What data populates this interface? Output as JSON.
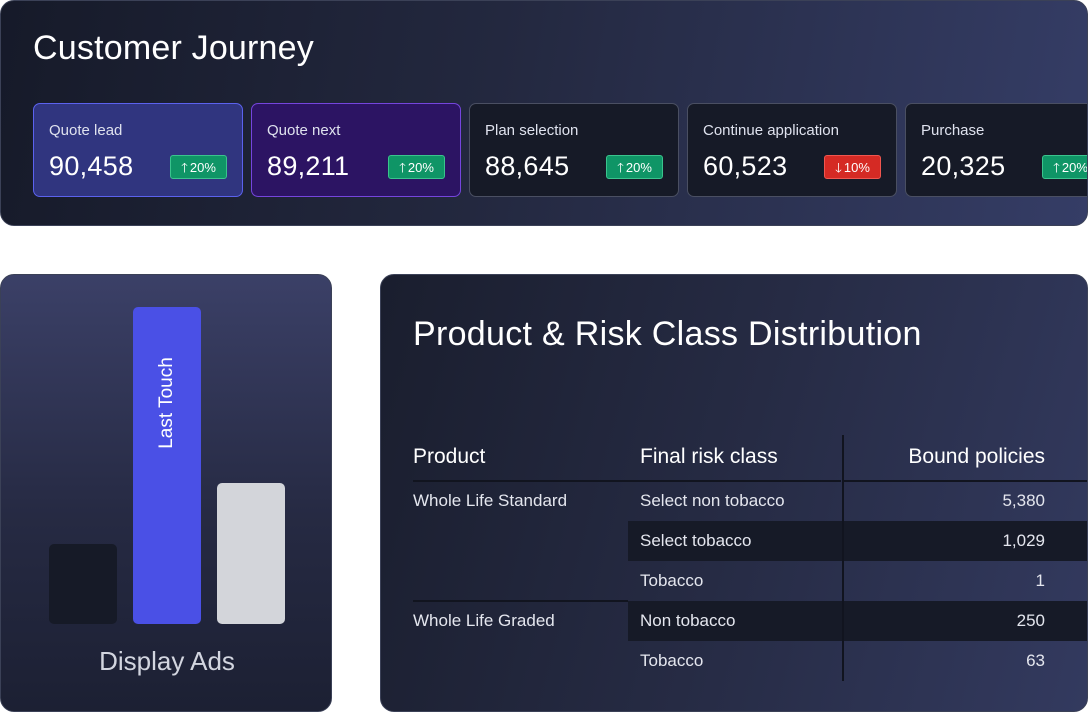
{
  "journey": {
    "title": "Customer Journey",
    "cards": [
      {
        "label": "Quote lead",
        "value": "90,458",
        "change": "20%",
        "direction": "up"
      },
      {
        "label": "Quote next",
        "value": "89,211",
        "change": "20%",
        "direction": "up"
      },
      {
        "label": "Plan selection",
        "value": "88,645",
        "change": "20%",
        "direction": "up"
      },
      {
        "label": "Continue application",
        "value": "60,523",
        "change": "10%",
        "direction": "down"
      },
      {
        "label": "Purchase",
        "value": "20,325",
        "change": "20%",
        "direction": "up"
      }
    ]
  },
  "ads": {
    "bar_label": "Last Touch",
    "caption": "Display Ads"
  },
  "distribution": {
    "title": "Product & Risk Class Distribution",
    "headers": {
      "product": "Product",
      "risk": "Final risk class",
      "bound": "Bound policies"
    },
    "rows": [
      {
        "product": "Whole Life Standard",
        "risk": "Select non tobacco",
        "bound": "5,380"
      },
      {
        "product": "",
        "risk": "Select tobacco",
        "bound": "1,029"
      },
      {
        "product": "",
        "risk": "Tobacco",
        "bound": "1"
      },
      {
        "product": "Whole Life Graded",
        "risk": "Non tobacco",
        "bound": "250"
      },
      {
        "product": "",
        "risk": "Tobacco",
        "bound": "63"
      }
    ]
  },
  "colors": {
    "up_badge": "#0f9566",
    "down_badge": "#d52a24",
    "accent_blue": "#4a50e6",
    "accent_purple": "#7545dd"
  }
}
